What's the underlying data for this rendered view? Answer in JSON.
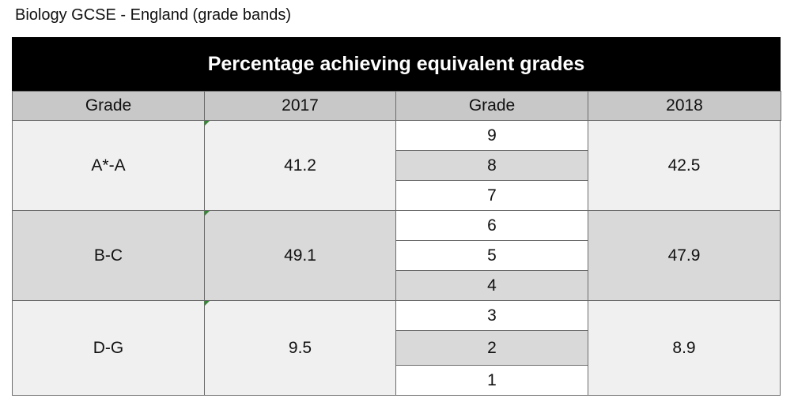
{
  "header": {
    "title": "Biology GCSE - England (grade bands)"
  },
  "table": {
    "caption": "Percentage achieving equivalent grades",
    "columns": [
      "Grade",
      "2017",
      "Grade",
      "2018"
    ],
    "rows": [
      {
        "band": "A*-A",
        "y2017": 41.2,
        "grades": [
          9,
          8,
          7
        ],
        "y2018": 42.5
      },
      {
        "band": "B-C",
        "y2017": 49.1,
        "grades": [
          6,
          5,
          4
        ],
        "y2018": 47.9
      },
      {
        "band": "D-G",
        "y2017": 9.5,
        "grades": [
          3,
          2,
          1
        ],
        "y2018": 8.9
      }
    ]
  }
}
